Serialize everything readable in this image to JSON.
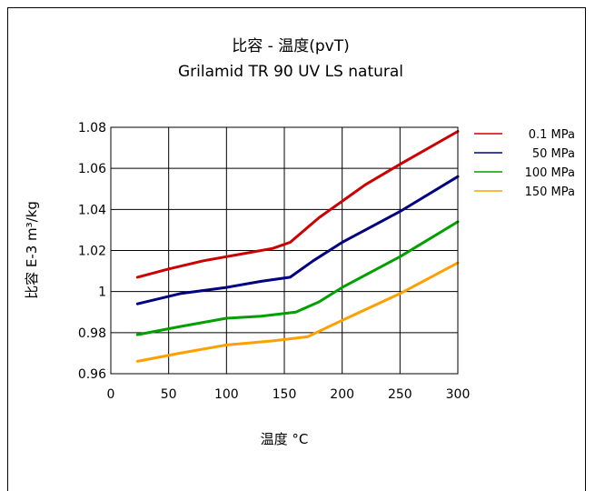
{
  "chart_data": {
    "type": "line",
    "title": "比容 - 温度(pvT)",
    "subtitle": "Grilamid TR 90 UV LS natural",
    "xlabel": "温度 °C",
    "ylabel": "比容 E-3 m³/kg",
    "xlim": [
      0,
      300
    ],
    "ylim": [
      0.96,
      1.08
    ],
    "xticks": [
      0,
      50,
      100,
      150,
      200,
      250,
      300
    ],
    "xtick_labels": [
      "0",
      "50",
      "100",
      "150",
      "200",
      "250",
      "300"
    ],
    "yticks": [
      0.96,
      0.98,
      1.0,
      1.02,
      1.04,
      1.06,
      1.08
    ],
    "ytick_labels": [
      "0.96",
      "0.98",
      "1",
      "1.02",
      "1.04",
      "1.06",
      "1.08"
    ],
    "grid": true,
    "legend_position": "right",
    "series": [
      {
        "name": "0.1 MPa",
        "color": "#cc0000",
        "points": [
          [
            23,
            1.007
          ],
          [
            50,
            1.011
          ],
          [
            80,
            1.015
          ],
          [
            110,
            1.018
          ],
          [
            140,
            1.021
          ],
          [
            155,
            1.024
          ],
          [
            180,
            1.036
          ],
          [
            200,
            1.044
          ],
          [
            220,
            1.052
          ],
          [
            250,
            1.062
          ],
          [
            300,
            1.078
          ]
        ]
      },
      {
        "name": "50 MPa",
        "color": "#000080",
        "points": [
          [
            23,
            0.994
          ],
          [
            60,
            0.999
          ],
          [
            100,
            1.002
          ],
          [
            130,
            1.005
          ],
          [
            155,
            1.007
          ],
          [
            175,
            1.015
          ],
          [
            200,
            1.024
          ],
          [
            250,
            1.039
          ],
          [
            300,
            1.056
          ]
        ]
      },
      {
        "name": "100 MPa",
        "color": "#00a000",
        "points": [
          [
            23,
            0.979
          ],
          [
            60,
            0.983
          ],
          [
            100,
            0.987
          ],
          [
            130,
            0.988
          ],
          [
            160,
            0.99
          ],
          [
            180,
            0.995
          ],
          [
            200,
            1.002
          ],
          [
            250,
            1.017
          ],
          [
            300,
            1.034
          ]
        ]
      },
      {
        "name": "150 MPa",
        "color": "#ffa000",
        "points": [
          [
            23,
            0.966
          ],
          [
            60,
            0.97
          ],
          [
            100,
            0.974
          ],
          [
            140,
            0.976
          ],
          [
            170,
            0.978
          ],
          [
            200,
            0.986
          ],
          [
            250,
            0.999
          ],
          [
            300,
            1.014
          ]
        ]
      }
    ]
  }
}
